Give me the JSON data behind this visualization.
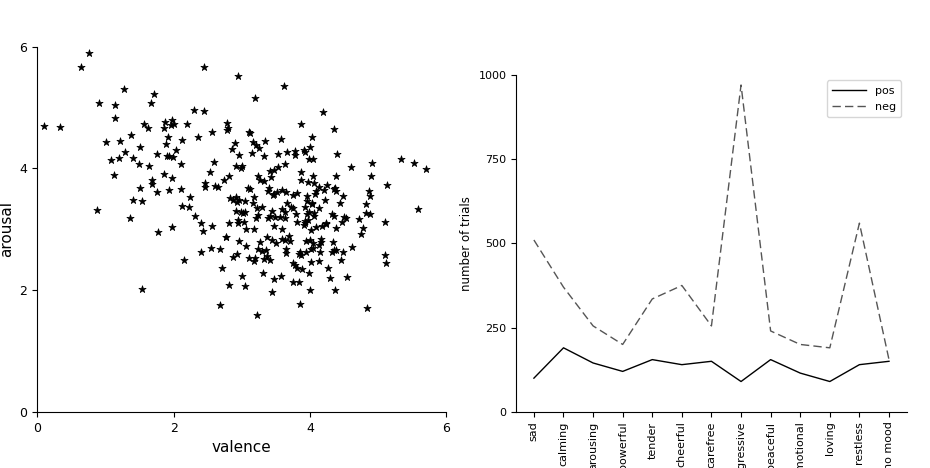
{
  "categories": [
    "sad",
    "calming",
    "arousing",
    "powerful",
    "tender",
    "cheerful",
    "carefree",
    "aggressive",
    "peaceful",
    "emotional",
    "loving",
    "restless",
    "no mood"
  ],
  "pos_values": [
    100,
    190,
    145,
    120,
    155,
    140,
    150,
    90,
    155,
    115,
    90,
    140,
    150
  ],
  "neg_values": [
    510,
    370,
    255,
    200,
    335,
    375,
    255,
    970,
    240,
    200,
    190,
    560,
    155
  ],
  "ylabel": "number of trials",
  "xlabel_scatter": "valence",
  "ylabel_scatter": "arousal",
  "ylim": [
    0,
    1000
  ],
  "yticks": [
    0,
    250,
    500,
    750,
    1000
  ],
  "scatter_xlim": [
    0,
    6
  ],
  "scatter_ylim": [
    0,
    6
  ],
  "scatter_xticks": [
    0,
    2,
    4,
    6
  ],
  "scatter_yticks": [
    0,
    2,
    4,
    6
  ],
  "line_color": "#000000",
  "dash_color": "#555555",
  "scatter_color": "#000000",
  "bg_color": "#e8e8e8",
  "fig_bg": "#ffffff"
}
